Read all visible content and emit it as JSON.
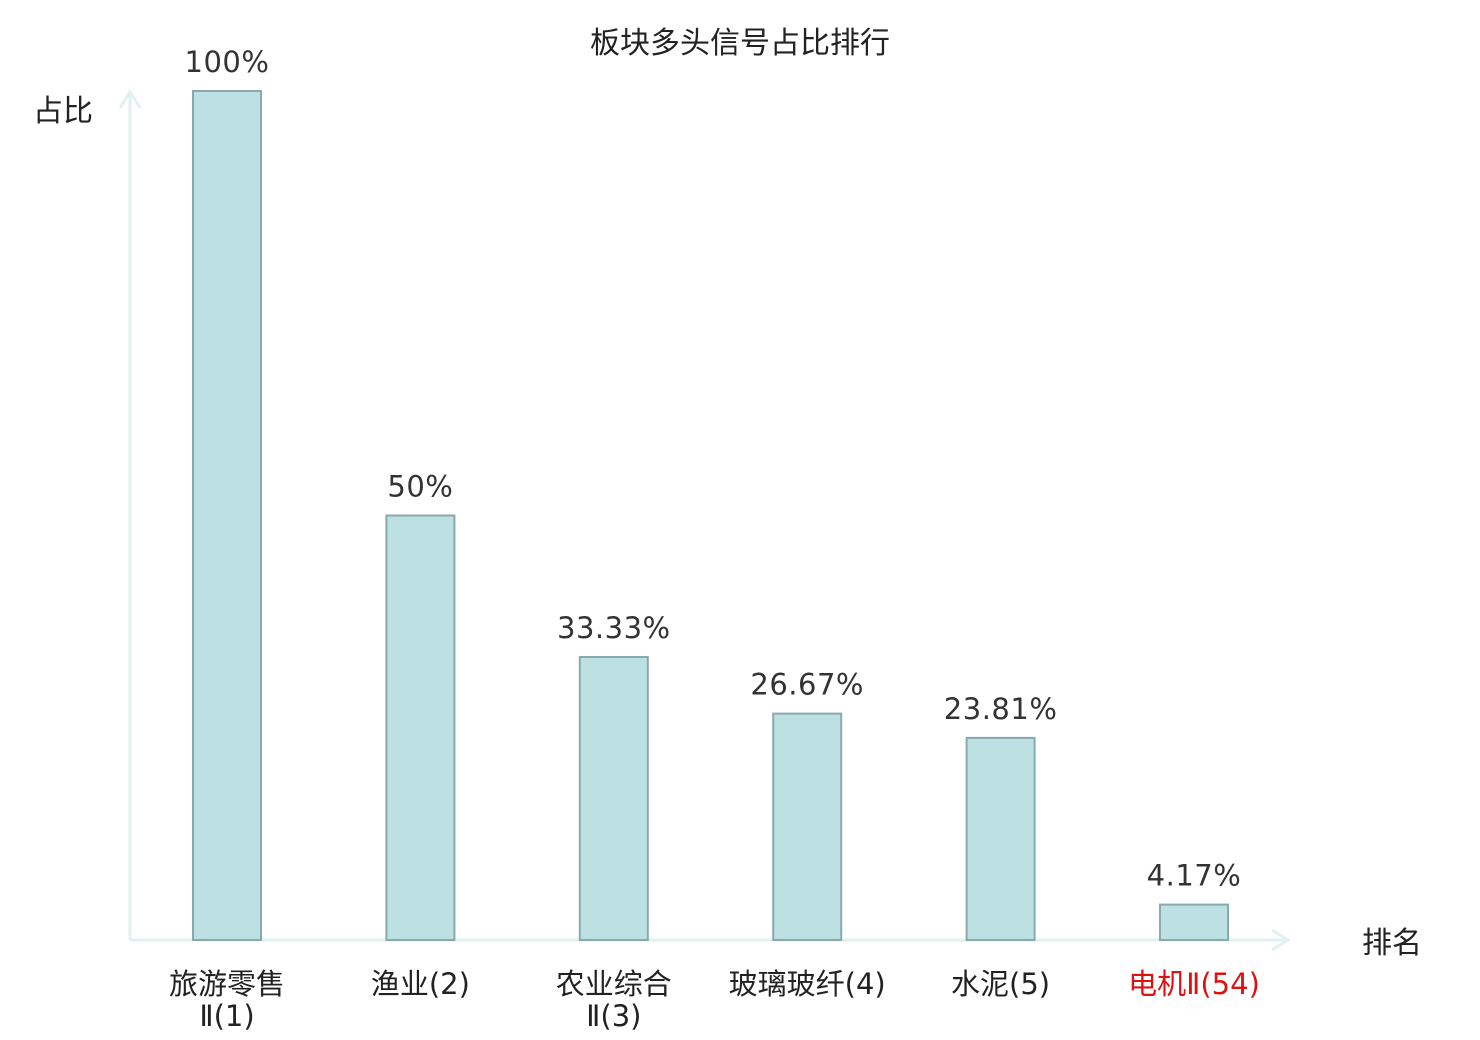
{
  "colors": {
    "bar_fill": "#bde0e3",
    "bar_stroke": "#8aa9ac",
    "axis": "#dff2ef",
    "text": "#222222",
    "highlight": "#e01010"
  },
  "chart_data": {
    "type": "bar",
    "title": "板块多头信号占比排行",
    "xlabel": "排名",
    "ylabel": "占比",
    "ylim": [
      0,
      100
    ],
    "grid": false,
    "categories": [
      [
        "旅游零售",
        "Ⅱ(1)"
      ],
      [
        "渔业(2)"
      ],
      [
        "农业综合",
        "Ⅱ(3)"
      ],
      [
        "玻璃玻纤(4)"
      ],
      [
        "水泥(5)"
      ],
      [
        "电机Ⅱ(54)"
      ]
    ],
    "values": [
      100,
      50,
      33.33,
      26.67,
      23.81,
      4.17
    ],
    "value_labels": [
      "100%",
      "50%",
      "33.33%",
      "26.67%",
      "23.81%",
      "4.17%"
    ],
    "highlighted_index": 5
  }
}
